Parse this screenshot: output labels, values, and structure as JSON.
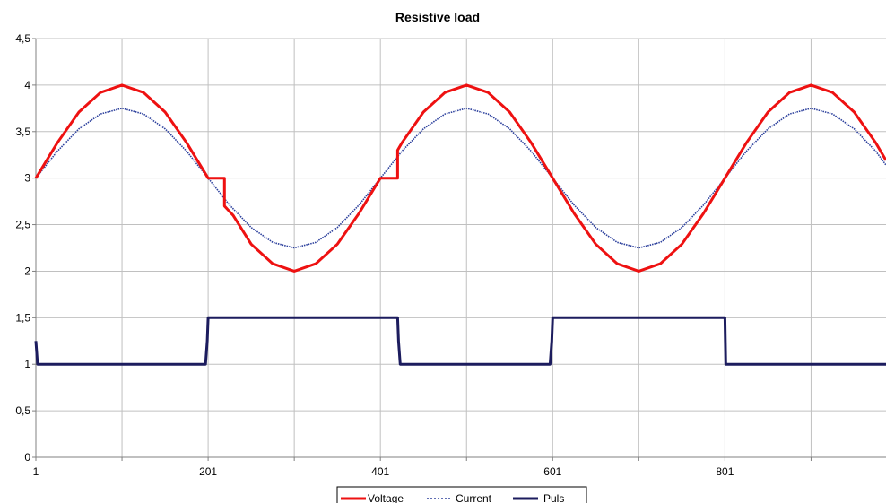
{
  "chart_data": {
    "type": "line",
    "title": "Resistive load",
    "xlabel": "",
    "ylabel": "",
    "xlim": [
      1,
      988
    ],
    "ylim": [
      0,
      4.5
    ],
    "y_ticks": [
      "0",
      "0,5",
      "1",
      "1,5",
      "2",
      "2,5",
      "3",
      "3,5",
      "4",
      "4,5"
    ],
    "y_tick_values": [
      0,
      0.5,
      1,
      1.5,
      2,
      2.5,
      3,
      3.5,
      4,
      4.5
    ],
    "x_ticks": [
      "1",
      "201",
      "401",
      "601",
      "801"
    ],
    "x_tick_values": [
      1,
      201,
      401,
      601,
      801
    ],
    "x_gridlines": [
      1,
      101,
      201,
      301,
      401,
      501,
      601,
      701,
      801,
      901
    ],
    "grid": true,
    "legend_position": "bottom",
    "series": [
      {
        "name": "Voltage",
        "color": "#ee1111",
        "style": "solid-thick",
        "points": [
          [
            1,
            3.0
          ],
          [
            26,
            3.38
          ],
          [
            51,
            3.71
          ],
          [
            76,
            3.92
          ],
          [
            101,
            4.0
          ],
          [
            126,
            3.92
          ],
          [
            151,
            3.71
          ],
          [
            176,
            3.38
          ],
          [
            201,
            3.0
          ],
          [
            220,
            3.0
          ],
          [
            220,
            2.7
          ],
          [
            230,
            2.6
          ],
          [
            251,
            2.29
          ],
          [
            276,
            2.08
          ],
          [
            301,
            2.0
          ],
          [
            326,
            2.08
          ],
          [
            351,
            2.29
          ],
          [
            376,
            2.62
          ],
          [
            401,
            3.0
          ],
          [
            421,
            3.0
          ],
          [
            421,
            3.3
          ],
          [
            426,
            3.38
          ],
          [
            451,
            3.71
          ],
          [
            476,
            3.92
          ],
          [
            501,
            4.0
          ],
          [
            526,
            3.92
          ],
          [
            551,
            3.71
          ],
          [
            576,
            3.38
          ],
          [
            601,
            3.0
          ],
          [
            626,
            2.62
          ],
          [
            651,
            2.29
          ],
          [
            676,
            2.08
          ],
          [
            701,
            2.0
          ],
          [
            726,
            2.08
          ],
          [
            751,
            2.29
          ],
          [
            776,
            2.62
          ],
          [
            801,
            3.0
          ],
          [
            826,
            3.38
          ],
          [
            851,
            3.71
          ],
          [
            876,
            3.92
          ],
          [
            901,
            4.0
          ],
          [
            926,
            3.92
          ],
          [
            951,
            3.71
          ],
          [
            976,
            3.38
          ],
          [
            988,
            3.19
          ]
        ]
      },
      {
        "name": "Current",
        "color": "#2b3f9c",
        "style": "dotted",
        "points": [
          [
            1,
            3.0
          ],
          [
            26,
            3.29
          ],
          [
            51,
            3.53
          ],
          [
            76,
            3.69
          ],
          [
            101,
            3.75
          ],
          [
            126,
            3.69
          ],
          [
            151,
            3.53
          ],
          [
            176,
            3.29
          ],
          [
            201,
            3.0
          ],
          [
            226,
            2.71
          ],
          [
            251,
            2.47
          ],
          [
            276,
            2.31
          ],
          [
            301,
            2.25
          ],
          [
            326,
            2.31
          ],
          [
            351,
            2.47
          ],
          [
            376,
            2.71
          ],
          [
            401,
            3.0
          ],
          [
            426,
            3.29
          ],
          [
            451,
            3.53
          ],
          [
            476,
            3.69
          ],
          [
            501,
            3.75
          ],
          [
            526,
            3.69
          ],
          [
            551,
            3.53
          ],
          [
            576,
            3.29
          ],
          [
            601,
            3.0
          ],
          [
            626,
            2.71
          ],
          [
            651,
            2.47
          ],
          [
            676,
            2.31
          ],
          [
            701,
            2.25
          ],
          [
            726,
            2.31
          ],
          [
            751,
            2.47
          ],
          [
            776,
            2.71
          ],
          [
            801,
            3.0
          ],
          [
            826,
            3.29
          ],
          [
            851,
            3.53
          ],
          [
            876,
            3.69
          ],
          [
            901,
            3.75
          ],
          [
            926,
            3.69
          ],
          [
            951,
            3.53
          ],
          [
            976,
            3.29
          ],
          [
            988,
            3.14
          ]
        ]
      },
      {
        "name": "Puls",
        "color": "#1c1c5e",
        "style": "solid-thick",
        "points": [
          [
            1,
            1.25
          ],
          [
            3,
            1.0
          ],
          [
            198,
            1.0
          ],
          [
            200,
            1.25
          ],
          [
            201,
            1.5
          ],
          [
            421,
            1.5
          ],
          [
            422,
            1.25
          ],
          [
            424,
            1.0
          ],
          [
            598,
            1.0
          ],
          [
            600,
            1.25
          ],
          [
            601,
            1.5
          ],
          [
            801,
            1.5
          ],
          [
            802,
            1.0
          ],
          [
            988,
            1.0
          ]
        ]
      }
    ]
  }
}
